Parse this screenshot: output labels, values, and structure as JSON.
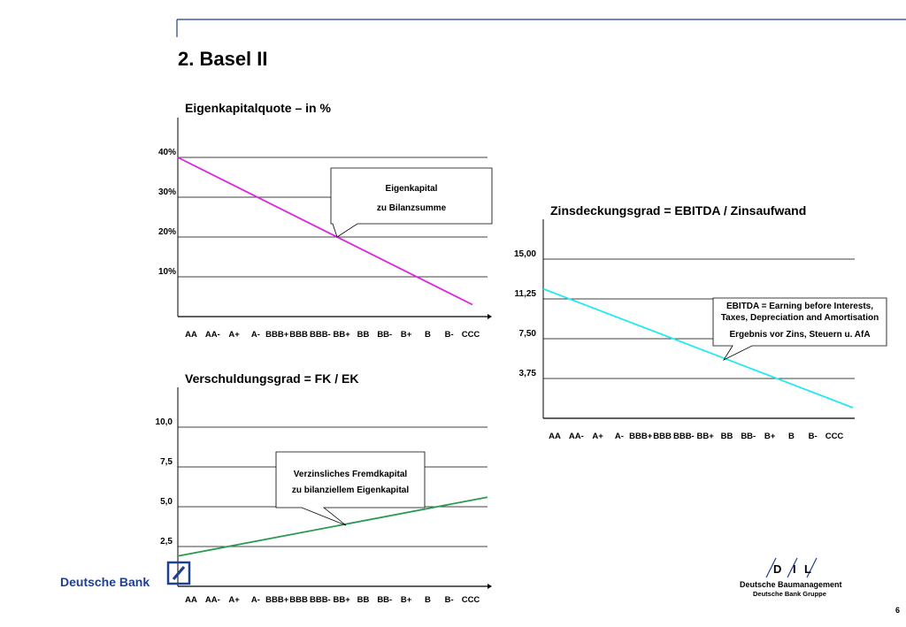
{
  "slide": {
    "title": "2. Basel II",
    "page_number": "6"
  },
  "logos": {
    "deutsche_bank": "Deutsche Bank",
    "dil_letters": [
      "D",
      "I",
      "L"
    ],
    "dil_line1": "Deutsche Baumanagement",
    "dil_line2": "Deutsche Bank Gruppe"
  },
  "colors": {
    "accent_blue": "#1f3f8f",
    "equity_line": "#e020e0",
    "coverage_line": "#22e8f0",
    "debt_line": "#2a9a52"
  },
  "chart_data": [
    {
      "id": "equity",
      "type": "line",
      "title": "Eigenkapitalquote – in %",
      "categories": [
        "AA",
        "AA-",
        "A+",
        "A-",
        "BBB+",
        "BBB",
        "BBB-",
        "BB+",
        "BB",
        "BB-",
        "B+",
        "B",
        "B-",
        "CCC"
      ],
      "ytick_labels": [
        "10%",
        "20%",
        "30%",
        "40%"
      ],
      "ytick_values": [
        10,
        20,
        30,
        40
      ],
      "ylim": [
        0,
        50
      ],
      "grid": true,
      "series": [
        {
          "start": 40,
          "end": 3
        }
      ],
      "annotation": [
        "Eigenkapital",
        "zu Bilanzsumme"
      ]
    },
    {
      "id": "debt",
      "type": "line",
      "title": "Verschuldungsgrad = FK / EK",
      "categories": [
        "AA",
        "AA-",
        "A+",
        "A-",
        "BBB+",
        "BBB",
        "BBB-",
        "BB+",
        "BB",
        "BB-",
        "B+",
        "B",
        "B-",
        "CCC"
      ],
      "ytick_labels": [
        "2,5",
        "5,0",
        "7,5",
        "10,0"
      ],
      "ytick_values": [
        2.5,
        5.0,
        7.5,
        10.0
      ],
      "ylim": [
        0,
        12.5
      ],
      "grid": true,
      "series": [
        {
          "start": 1.9,
          "end": 5.6
        }
      ],
      "annotation": [
        "Verzinsliches Fremdkapital",
        "zu bilanziellem Eigenkapital"
      ]
    },
    {
      "id": "coverage",
      "type": "line",
      "title": "Zinsdeckungsgrad = EBITDA / Zinsaufwand",
      "categories": [
        "AA",
        "AA-",
        "A+",
        "A-",
        "BBB+",
        "BBB",
        "BBB-",
        "BB+",
        "BB",
        "BB-",
        "B+",
        "B",
        "B-",
        "CCC"
      ],
      "ytick_labels": [
        "3,75",
        "7,50",
        "11,25",
        "15,00"
      ],
      "ytick_values": [
        3.75,
        7.5,
        11.25,
        15.0
      ],
      "ylim": [
        0,
        18.75
      ],
      "grid": true,
      "series": [
        {
          "start": 12.2,
          "end": 1.0
        }
      ],
      "annotation": [
        "EBITDA = Earning before Interests,",
        "Taxes, Depreciation and Amortisation",
        "Ergebnis vor Zins, Steuern u. AfA"
      ]
    }
  ]
}
